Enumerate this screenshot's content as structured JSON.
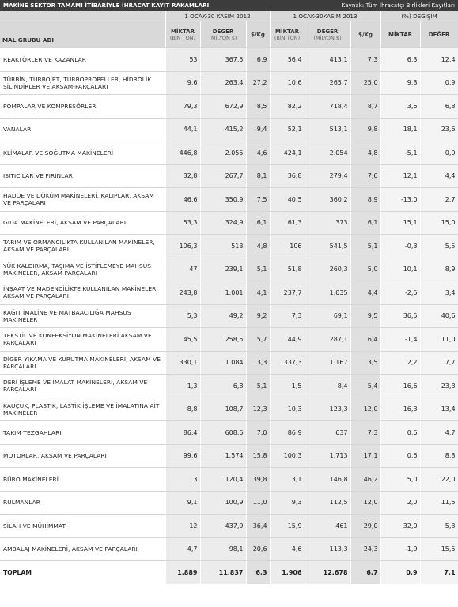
{
  "header": {
    "title": "MAKİNE SEKTÖR TAMAMI İTİBARİYLE İHRACAT KAYIT RAKAMLARI",
    "source": "Kaynak: Tüm İhracatçı Birlikleri Kayıtları"
  },
  "columns": {
    "group_name": "MAL GRUBU ADI",
    "period_2012": "1 OCAK-30 KASIM 2012",
    "period_2013": "1 OCAK-30KASIM 2013",
    "change": "(%) DEĞİŞİM",
    "quantity": "MİKTAR",
    "quantity_unit": "(BİN TON)",
    "value": "DEĞER",
    "value_unit": "(MİLYON $)",
    "per_kg": "$/Kg",
    "change_quantity": "MİKTAR",
    "change_value": "DEĞER"
  },
  "rows": [
    {
      "name": "REAKTÖRLER VE KAZANLAR",
      "q2012": "53",
      "v2012": "367,5",
      "kg2012": "6,9",
      "q2013": "56,4",
      "v2013": "413,1",
      "kg2013": "7,3",
      "dq": "6,3",
      "dv": "12,4"
    },
    {
      "name": "TÜRBİN, TURBOJET, TURBOPROPELLER, HİDROLİK SİLİNDİRLER VE AKSAM-PARÇALARI",
      "q2012": "9,6",
      "v2012": "263,4",
      "kg2012": "27,2",
      "q2013": "10,6",
      "v2013": "265,7",
      "kg2013": "25,0",
      "dq": "9,8",
      "dv": "0,9"
    },
    {
      "name": "POMPALAR VE KOMPRESÖRLER",
      "q2012": "79,3",
      "v2012": "672,9",
      "kg2012": "8,5",
      "q2013": "82,2",
      "v2013": "718,4",
      "kg2013": "8,7",
      "dq": "3,6",
      "dv": "6,8"
    },
    {
      "name": "VANALAR",
      "q2012": "44,1",
      "v2012": "415,2",
      "kg2012": "9,4",
      "q2013": "52,1",
      "v2013": "513,1",
      "kg2013": "9,8",
      "dq": "18,1",
      "dv": "23,6"
    },
    {
      "name": "KLİMALAR VE SOĞUTMA MAKİNELERİ",
      "q2012": "446,8",
      "v2012": "2.055",
      "kg2012": "4,6",
      "q2013": "424,1",
      "v2013": "2.054",
      "kg2013": "4,8",
      "dq": "-5,1",
      "dv": "0,0"
    },
    {
      "name": "ISITICILAR VE FIRINLAR",
      "q2012": "32,8",
      "v2012": "267,7",
      "kg2012": "8,1",
      "q2013": "36,8",
      "v2013": "279,4",
      "kg2013": "7,6",
      "dq": "12,1",
      "dv": "4,4"
    },
    {
      "name": "HADDE VE DÖKÜM MAKİNELERİ, KALIPLAR, AKSAM VE PARÇALARI",
      "q2012": "46,6",
      "v2012": "350,9",
      "kg2012": "7,5",
      "q2013": "40,5",
      "v2013": "360,2",
      "kg2013": "8,9",
      "dq": "-13,0",
      "dv": "2,7"
    },
    {
      "name": "GIDA MAKİNELERİ, AKSAM VE PARÇALARI",
      "q2012": "53,3",
      "v2012": "324,9",
      "kg2012": "6,1",
      "q2013": "61,3",
      "v2013": "373",
      "kg2013": "6,1",
      "dq": "15,1",
      "dv": "15,0"
    },
    {
      "name": "TARIM VE ORMANCILIKTA KULLANILAN MAKİNELER, AKSAM VE PARÇALARI",
      "q2012": "106,3",
      "v2012": "513",
      "kg2012": "4,8",
      "q2013": "106",
      "v2013": "541,5",
      "kg2013": "5,1",
      "dq": "-0,3",
      "dv": "5,5"
    },
    {
      "name": "YÜK KALDIRMA, TAŞIMA VE İSTİFLEMEYE MAHSUS MAKİNELER, AKSAM PARÇALARI",
      "q2012": "47",
      "v2012": "239,1",
      "kg2012": "5,1",
      "q2013": "51,8",
      "v2013": "260,3",
      "kg2013": "5,0",
      "dq": "10,1",
      "dv": "8,9"
    },
    {
      "name": "İNŞAAT VE MADENCİLİKTE KULLANILAN MAKİNELER, AKSAM VE PARÇALARI",
      "q2012": "243,8",
      "v2012": "1.001",
      "kg2012": "4,1",
      "q2013": "237,7",
      "v2013": "1.035",
      "kg2013": "4,4",
      "dq": "-2,5",
      "dv": "3,4"
    },
    {
      "name": "KAĞIT İMALİNE VE MATBAACILIĞA MAHSUS MAKİNELER",
      "q2012": "5,3",
      "v2012": "49,2",
      "kg2012": "9,2",
      "q2013": "7,3",
      "v2013": "69,1",
      "kg2013": "9,5",
      "dq": "36,5",
      "dv": "40,6"
    },
    {
      "name": "TEKSTİL VE KONFEKSİYON MAKİNELERİ AKSAM VE PARÇALARI",
      "q2012": "45,5",
      "v2012": "258,5",
      "kg2012": "5,7",
      "q2013": "44,9",
      "v2013": "287,1",
      "kg2013": "6,4",
      "dq": "-1,4",
      "dv": "11,0"
    },
    {
      "name": "DİĞER YIKAMA VE KURUTMA MAKİNELERİ, AKSAM VE PARÇALARI",
      "q2012": "330,1",
      "v2012": "1.084",
      "kg2012": "3,3",
      "q2013": "337,3",
      "v2013": "1.167",
      "kg2013": "3,5",
      "dq": "2,2",
      "dv": "7,7"
    },
    {
      "name": "DERİ İŞLEME VE İMALAT MAKİNELERİ, AKSAM VE PARÇALARI",
      "q2012": "1,3",
      "v2012": "6,8",
      "kg2012": "5,1",
      "q2013": "1,5",
      "v2013": "8,4",
      "kg2013": "5,4",
      "dq": "16,6",
      "dv": "23,3"
    },
    {
      "name": "KAUÇUK, PLASTİK, LASTİK İŞLEME VE İMALATINA AİT MAKİNELER",
      "q2012": "8,8",
      "v2012": "108,7",
      "kg2012": "12,3",
      "q2013": "10,3",
      "v2013": "123,3",
      "kg2013": "12,0",
      "dq": "16,3",
      "dv": "13,4"
    },
    {
      "name": "TAKIM TEZGAHLARI",
      "q2012": "86,4",
      "v2012": "608,6",
      "kg2012": "7,0",
      "q2013": "86,9",
      "v2013": "637",
      "kg2013": "7,3",
      "dq": "0,6",
      "dv": "4,7"
    },
    {
      "name": "MOTORLAR, AKSAM VE PARÇALARI",
      "q2012": "99,6",
      "v2012": "1.574",
      "kg2012": "15,8",
      "q2013": "100,3",
      "v2013": "1.713",
      "kg2013": "17,1",
      "dq": "0,6",
      "dv": "8,8"
    },
    {
      "name": "BÜRO MAKİNELERİ",
      "q2012": "3",
      "v2012": "120,4",
      "kg2012": "39,8",
      "q2013": "3,1",
      "v2013": "146,8",
      "kg2013": "46,2",
      "dq": "5,0",
      "dv": "22,0"
    },
    {
      "name": "RULMANLAR",
      "q2012": "9,1",
      "v2012": "100,9",
      "kg2012": "11,0",
      "q2013": "9,3",
      "v2013": "112,5",
      "kg2013": "12,0",
      "dq": "2,0",
      "dv": "11,5"
    },
    {
      "name": "SİLAH VE MÜHİMMAT",
      "q2012": "12",
      "v2012": "437,9",
      "kg2012": "36,4",
      "q2013": "15,9",
      "v2013": "461",
      "kg2013": "29,0",
      "dq": "32,0",
      "dv": "5,3"
    },
    {
      "name": "AMBALAJ MAKİNELERİ, AKSAM VE PARÇALARI",
      "q2012": "4,7",
      "v2012": "98,1",
      "kg2012": "20,6",
      "q2013": "4,6",
      "v2013": "113,3",
      "kg2013": "24,3",
      "dq": "-1,9",
      "dv": "15,5"
    }
  ],
  "total": {
    "name": "TOPLAM",
    "q2012": "1.889",
    "v2012": "11.837",
    "kg2012": "6,3",
    "q2013": "1.906",
    "v2013": "12.678",
    "kg2013": "6,7",
    "dq": "0,9",
    "dv": "7,1"
  }
}
